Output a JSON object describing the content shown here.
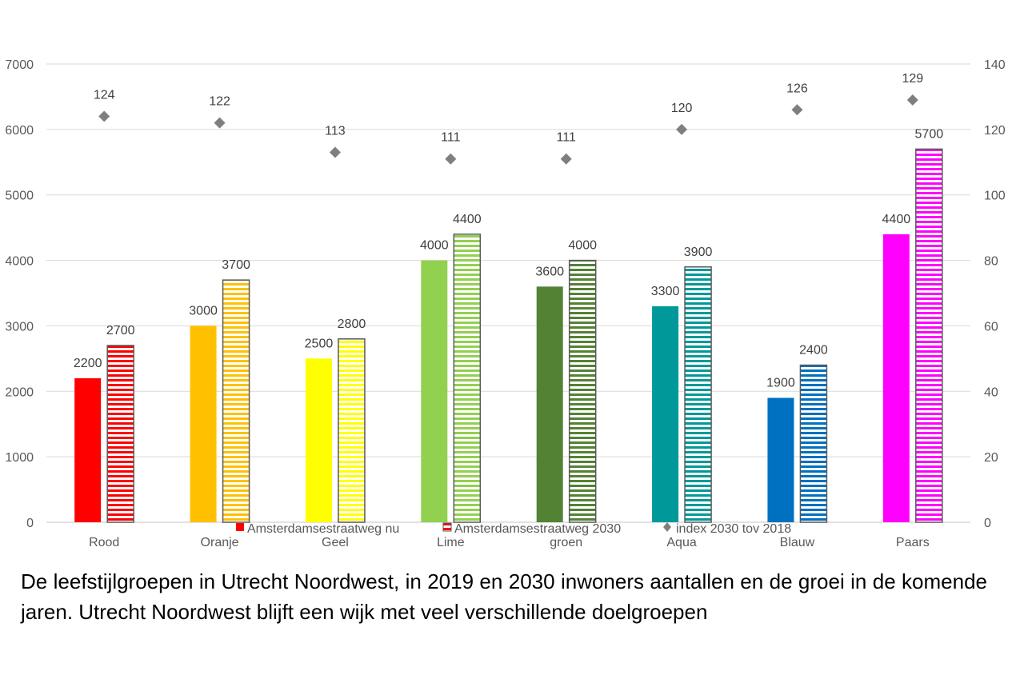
{
  "chart_data": {
    "type": "bar",
    "categories": [
      "Rood",
      "Oranje",
      "Geel",
      "Lime",
      "groen",
      "Aqua",
      "Blauw",
      "Paars"
    ],
    "colors": [
      "#ff0000",
      "#ffc000",
      "#ffff00",
      "#92d050",
      "#548235",
      "#009999",
      "#0070c0",
      "#ff00ff"
    ],
    "series": [
      {
        "name": "Amsterdamsestraatweg nu",
        "axis": "left",
        "style": "solid",
        "values": [
          2200,
          3000,
          2500,
          4000,
          3600,
          3300,
          1900,
          4400
        ]
      },
      {
        "name": "Amsterdamsestraatweg 2030",
        "axis": "left",
        "style": "striped",
        "values": [
          2700,
          3700,
          2800,
          4400,
          4000,
          3900,
          2400,
          5700
        ]
      },
      {
        "name": "index 2030 tov 2018",
        "axis": "right",
        "style": "diamond-marker",
        "marker_color": "#7f7f7f",
        "values": [
          124,
          122,
          113,
          111,
          111,
          120,
          126,
          129
        ]
      }
    ],
    "y_left": {
      "min": 0,
      "max": 7000,
      "ticks": [
        "0",
        "1000",
        "2000",
        "3000",
        "4000",
        "5000",
        "6000",
        "7000"
      ]
    },
    "y_right": {
      "min": 0,
      "max": 140,
      "ticks": [
        "0",
        "20",
        "40",
        "60",
        "80",
        "100",
        "120",
        "140"
      ]
    },
    "grid": true,
    "gridline_color": "#d9d9d9",
    "legend_position": "bottom",
    "title": "",
    "xlabel": "",
    "ylabel": ""
  },
  "caption": "De leefstijlgroepen in Utrecht Noordwest, in 2019 en 2030 inwoners aantallen en de groei in de komende jaren. Utrecht Noordwest blijft een wijk met veel verschillende doelgroepen"
}
